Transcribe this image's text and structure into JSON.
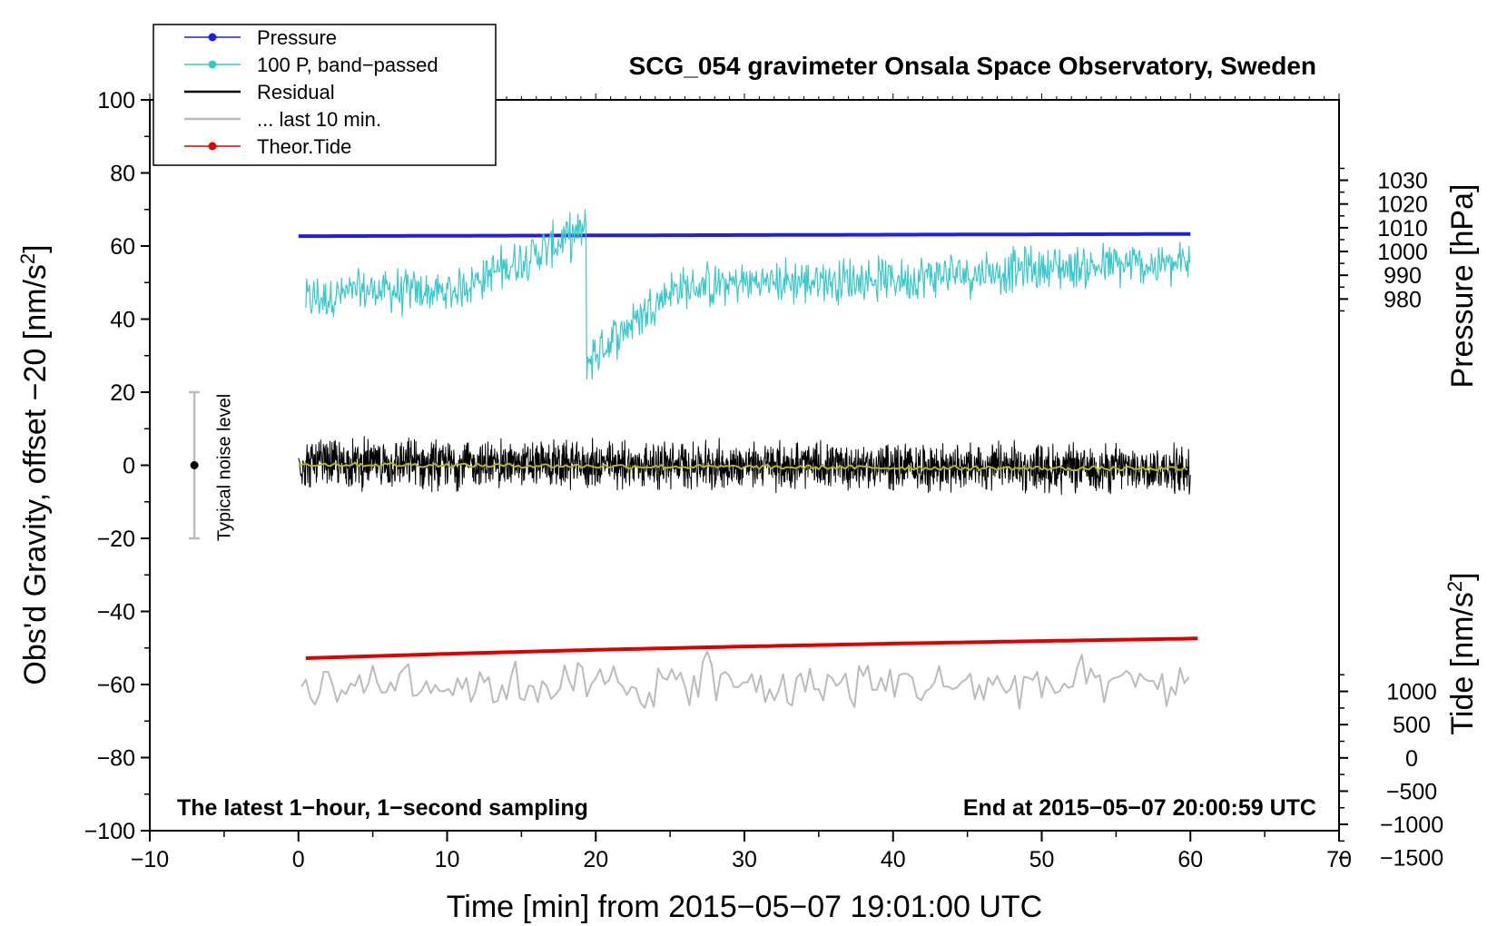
{
  "chart_data": {
    "type": "line",
    "title": "SCG_054 gravimeter Onsala Space Observatory, Sweden",
    "xlabel": "Time [min] from 2015−05−07 19:01:00 UTC",
    "ylabel_left": "Obs'd Gravity, offset −20 [nm/s",
    "ylabel_left_sup": "2",
    "ylabel_left_close": "]",
    "ylabel_right_pressure": "Pressure [hPa]",
    "ylabel_right_tide": "Tide [nm/s",
    "ylabel_right_tide_sup": "2",
    "ylabel_right_tide_close": "]",
    "xlim": [
      -10,
      70
    ],
    "ylim": [
      -100,
      100
    ],
    "x_ticks": [
      -10,
      0,
      10,
      20,
      30,
      40,
      50,
      60,
      70
    ],
    "x_tick_labels": [
      "−10",
      "0",
      "10",
      "20",
      "30",
      "40",
      "50",
      "60",
      "70"
    ],
    "y_ticks": [
      -100,
      -80,
      -60,
      -40,
      -20,
      0,
      20,
      40,
      60,
      80,
      100
    ],
    "y_tick_labels": [
      "−100",
      "−80",
      "−60",
      "−40",
      "−20",
      "0",
      "20",
      "40",
      "60",
      "80",
      "100"
    ],
    "pressure_ticks": [
      980,
      990,
      1000,
      1010,
      1020,
      1030
    ],
    "pressure_tick_labels": [
      "980",
      "990",
      "1000",
      "1010",
      "1020",
      "1030"
    ],
    "pressure_axis": {
      "value_at_y0": 910.0,
      "y_per_hPa": 0.65
    },
    "tide_ticks": [
      -1500,
      -1000,
      -500,
      0,
      500,
      1000
    ],
    "tide_tick_labels": [
      "−1500",
      "−1000",
      "−500",
      "0",
      "500",
      "1000"
    ],
    "tide_axis": {
      "value_at_y0": 4400.0,
      "y_per_unit": 0.0182
    },
    "annotation_left": "The latest 1−hour, 1−second sampling",
    "annotation_right": "End at 2015−05−07 20:00:59 UTC",
    "noise_bar": {
      "label": "Typical noise level",
      "x": -7,
      "center": 0,
      "half_range": 20
    },
    "legend_placement": "top-left",
    "legend": [
      {
        "label": "Pressure",
        "color": "#1f1fe6",
        "marker": true
      },
      {
        "label": "100 P, band−passed",
        "color": "#3cc8c8",
        "marker": true
      },
      {
        "label": "Residual",
        "color": "#000000",
        "marker": false
      },
      {
        "label": "... last 10 min.",
        "color": "#bbbbbb",
        "marker": false
      },
      {
        "label": "Theor.Tide",
        "color": "#e00000",
        "marker": true
      }
    ],
    "series": [
      {
        "name": "Pressure",
        "color": "#1f1fe6",
        "x": [
          0,
          10,
          20,
          30,
          40,
          50,
          60
        ],
        "y": [
          62.7,
          62.8,
          62.9,
          63.0,
          63.1,
          63.2,
          63.3
        ]
      },
      {
        "name": "100 P, band−passed",
        "color": "#3cc8c8",
        "x": [
          0,
          5,
          10,
          19.2,
          19.5,
          25,
          30,
          40,
          50,
          60
        ],
        "y": [
          45,
          48,
          47,
          64,
          29,
          48,
          50,
          51,
          54,
          55
        ],
        "amplitude": 5
      },
      {
        "name": "Residual",
        "color": "#000000",
        "x": [
          0,
          30,
          60
        ],
        "y": [
          0.5,
          0,
          -1
        ],
        "amplitude": 6
      },
      {
        "name": "Residual smoothed",
        "color": "#b5b520",
        "x": [
          0,
          30,
          60
        ],
        "y": [
          0.3,
          -0.5,
          -1
        ]
      },
      {
        "name": "... last 10 min.",
        "color": "#bbbbbb",
        "x": [
          0,
          7.3,
          27.4,
          60
        ],
        "y": [
          -60,
          -50,
          -50,
          -62
        ],
        "amplitude": 6
      },
      {
        "name": "Theor.Tide",
        "color": "#e00000",
        "x": [
          0.5,
          10,
          20,
          30,
          40,
          50,
          60.5
        ],
        "y": [
          -52.8,
          -51.6,
          -50.5,
          -49.6,
          -48.8,
          -48.1,
          -47.4
        ]
      }
    ]
  }
}
